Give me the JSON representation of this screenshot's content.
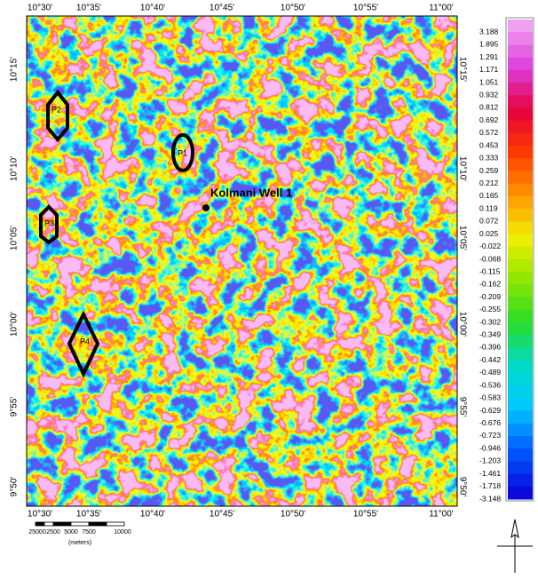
{
  "map": {
    "top_lon_labels": [
      "10°30'",
      "10°35'",
      "10°40'",
      "10°45'",
      "10°50'",
      "10°55'",
      "11°00'"
    ],
    "bottom_lon_labels": [
      "10°30'",
      "10°35'",
      "10°40'",
      "10°45'",
      "10°50'",
      "10°55'",
      "11°00'"
    ],
    "left_lat_labels": [
      "10°15'",
      "10°10'",
      "10°05'",
      "10°00'",
      "9°55'",
      "9°50'"
    ],
    "right_lat_labels": [
      "10°15'",
      "10°10'",
      "10°05'",
      "10°00'",
      "9°55'",
      "9°50'"
    ],
    "well_label": "Kolmani Well 1",
    "polygon_labels": [
      "P2",
      "P1",
      "P3",
      "P4"
    ],
    "legend_values": [
      "3.188",
      "1.895",
      "1.291",
      "1.171",
      "1.051",
      "0.932",
      "0.812",
      "0.692",
      "0.572",
      "0.453",
      "0.333",
      "0.259",
      "0.212",
      "0.165",
      "0.119",
      "0.072",
      "0.025",
      "-0.022",
      "-0.068",
      "-0.115",
      "-0.162",
      "-0.209",
      "-0.255",
      "-0.302",
      "-0.349",
      "-0.396",
      "-0.442",
      "-0.489",
      "-0.536",
      "-0.583",
      "-0.629",
      "-0.676",
      "-0.723",
      "-0.946",
      "-1.203",
      "-1.461",
      "-1.718",
      "-3.148"
    ],
    "scale_bar_labels": [
      "2500",
      "0",
      "2500",
      "5000",
      "7500",
      "10000"
    ],
    "scale_unit": "(meters)"
  }
}
